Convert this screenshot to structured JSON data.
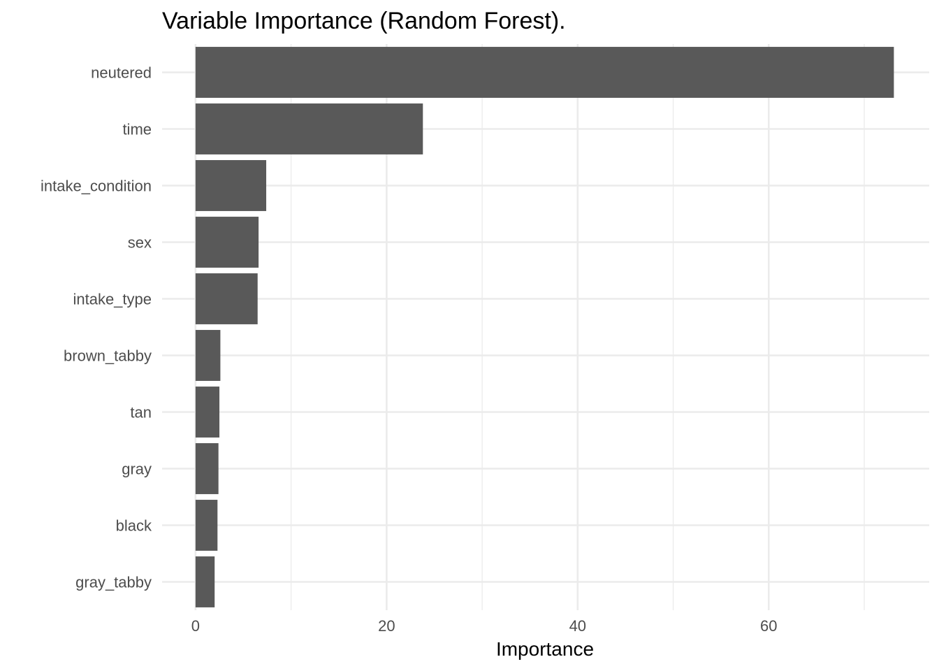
{
  "chart_data": {
    "type": "bar",
    "orientation": "horizontal",
    "title": "Variable Importance (Random Forest).",
    "xlabel": "Importance",
    "ylabel": "",
    "categories": [
      "neutered",
      "time",
      "intake_condition",
      "sex",
      "intake_type",
      "brown_tabby",
      "tan",
      "gray",
      "black",
      "gray_tabby"
    ],
    "values": [
      73.1,
      23.8,
      7.4,
      6.6,
      6.5,
      2.6,
      2.5,
      2.4,
      2.3,
      2.0
    ],
    "xlim": [
      -3.5,
      76.8
    ],
    "x_ticks": [
      0,
      20,
      40,
      60
    ],
    "x_tick_labels": [
      "0",
      "20",
      "40",
      "60"
    ],
    "grid": true,
    "legend": "none",
    "colors": {
      "bar": "#595959",
      "grid": "#ebebeb",
      "background": "#ffffff"
    }
  }
}
